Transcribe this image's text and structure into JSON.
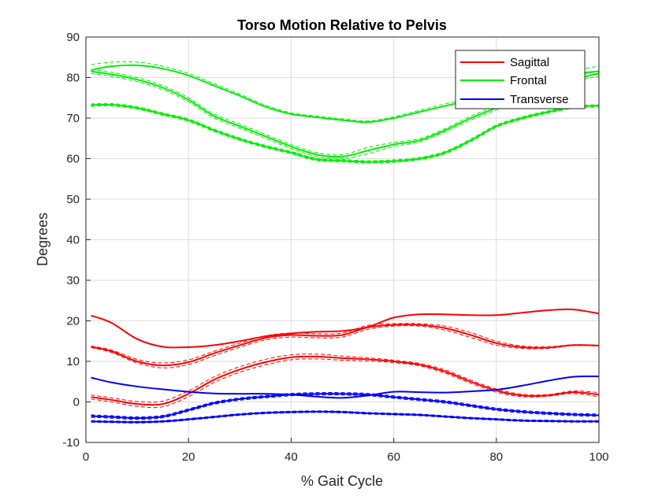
{
  "chart_data": {
    "type": "line",
    "title": "Torso Motion Relative to Pelvis",
    "xlabel": "% Gait Cycle",
    "ylabel": "Degrees",
    "xlim": [
      0,
      100
    ],
    "ylim": [
      -10,
      90
    ],
    "xticks": [
      0,
      20,
      40,
      60,
      80,
      100
    ],
    "yticks": [
      -10,
      0,
      10,
      20,
      30,
      40,
      50,
      60,
      70,
      80,
      90
    ],
    "grid": true,
    "legend_position": "top-right",
    "colors": {
      "Sagittal": "#ff0000",
      "Frontal": "#00ee00",
      "Transverse": "#0000ff",
      "grid": "#dedede",
      "axis": "#262626"
    },
    "series": [
      {
        "name": "Sagittal",
        "group": "Sagittal",
        "style": "solid",
        "x": [
          1,
          5,
          10,
          15,
          20,
          25,
          30,
          35,
          40,
          45,
          50,
          55,
          60,
          65,
          70,
          75,
          80,
          85,
          90,
          95,
          100
        ],
        "y": [
          21.3,
          19.5,
          15.5,
          13.6,
          13.5,
          14.0,
          15.0,
          16.2,
          16.9,
          17.3,
          17.5,
          18.5,
          20.8,
          21.6,
          21.6,
          21.4,
          21.4,
          22.0,
          22.6,
          22.8,
          21.8
        ]
      },
      {
        "name": "Sagittal mean 2",
        "group": "Sagittal",
        "style": "solid",
        "x": [
          1,
          5,
          10,
          15,
          20,
          25,
          30,
          35,
          40,
          45,
          50,
          55,
          60,
          65,
          70,
          75,
          80,
          85,
          90,
          95,
          100
        ],
        "y": [
          13.6,
          12.5,
          10.0,
          9.0,
          9.8,
          12.0,
          14.0,
          15.8,
          16.5,
          16.3,
          16.5,
          18.4,
          19.0,
          19.0,
          18.2,
          16.5,
          14.5,
          13.5,
          13.4,
          14.0,
          13.9
        ]
      },
      {
        "name": "Sagittal upper 2",
        "group": "Sagittal",
        "style": "dashed",
        "x": [
          1,
          5,
          10,
          15,
          20,
          25,
          30,
          35,
          40,
          45,
          50,
          55,
          60,
          65,
          70,
          75,
          80,
          85,
          90,
          95,
          100
        ],
        "y": [
          13.8,
          12.8,
          10.5,
          9.6,
          10.4,
          12.5,
          14.5,
          16.3,
          17.0,
          16.8,
          17.0,
          18.9,
          19.3,
          19.3,
          18.7,
          17.1,
          15.0,
          13.8,
          13.6,
          14.1,
          14.0
        ]
      },
      {
        "name": "Sagittal lower 2",
        "group": "Sagittal",
        "style": "dashed",
        "x": [
          1,
          5,
          10,
          15,
          20,
          25,
          30,
          35,
          40,
          45,
          50,
          55,
          60,
          65,
          70,
          75,
          80,
          85,
          90,
          95,
          100
        ],
        "y": [
          13.4,
          12.2,
          9.6,
          8.4,
          9.2,
          11.4,
          13.5,
          15.3,
          16.0,
          15.8,
          16.0,
          17.9,
          18.7,
          18.7,
          17.7,
          15.9,
          14.0,
          13.2,
          13.2,
          13.9,
          13.8
        ]
      },
      {
        "name": "Sagittal mean 3",
        "group": "Sagittal",
        "style": "solid",
        "x": [
          1,
          5,
          10,
          15,
          20,
          25,
          30,
          35,
          40,
          45,
          50,
          55,
          60,
          65,
          70,
          75,
          80,
          85,
          90,
          95,
          100
        ],
        "y": [
          1.2,
          0.5,
          -0.5,
          -0.5,
          2.0,
          5.5,
          8.0,
          9.8,
          11.0,
          11.2,
          10.8,
          10.5,
          10.0,
          9.2,
          7.5,
          5.0,
          2.8,
          1.6,
          1.6,
          2.4,
          1.8
        ]
      },
      {
        "name": "Sagittal upper 3",
        "group": "Sagittal",
        "style": "dashed",
        "x": [
          1,
          5,
          10,
          15,
          20,
          25,
          30,
          35,
          40,
          45,
          50,
          55,
          60,
          65,
          70,
          75,
          80,
          85,
          90,
          95,
          100
        ],
        "y": [
          1.7,
          1.0,
          0.1,
          0.2,
          2.7,
          6.2,
          8.7,
          10.5,
          11.6,
          11.8,
          11.3,
          10.9,
          10.3,
          9.5,
          7.9,
          5.4,
          3.2,
          1.9,
          1.8,
          2.7,
          2.3
        ]
      },
      {
        "name": "Sagittal lower 3",
        "group": "Sagittal",
        "style": "dashed",
        "x": [
          1,
          5,
          10,
          15,
          20,
          25,
          30,
          35,
          40,
          45,
          50,
          55,
          60,
          65,
          70,
          75,
          80,
          85,
          90,
          95,
          100
        ],
        "y": [
          0.7,
          0.0,
          -1.1,
          -1.2,
          1.3,
          4.8,
          7.3,
          9.1,
          10.4,
          10.6,
          10.3,
          10.1,
          9.7,
          8.9,
          7.1,
          4.6,
          2.4,
          1.3,
          1.4,
          2.1,
          1.3
        ]
      },
      {
        "name": "Frontal",
        "group": "Frontal",
        "style": "solid",
        "x": [
          1,
          5,
          10,
          15,
          20,
          25,
          30,
          35,
          40,
          45,
          50,
          55,
          60,
          65,
          70,
          75,
          80,
          85,
          90,
          95,
          100
        ],
        "y": [
          81.8,
          82.8,
          83.0,
          82.2,
          80.5,
          78.0,
          75.5,
          72.8,
          71.0,
          70.2,
          69.5,
          69.0,
          70.0,
          71.5,
          73.0,
          74.5,
          76.5,
          78.5,
          80.0,
          81.0,
          81.5
        ]
      },
      {
        "name": "Frontal upper 1",
        "group": "Frontal",
        "style": "dashed",
        "x": [
          1,
          5,
          10,
          15,
          20,
          25,
          30,
          35,
          40,
          45,
          50,
          55,
          60,
          65,
          70,
          75,
          80,
          85,
          90,
          95,
          100
        ],
        "y": [
          83.2,
          83.8,
          83.8,
          82.8,
          81.0,
          78.5,
          75.9,
          73.2,
          71.3,
          70.5,
          69.8,
          69.3,
          70.3,
          71.9,
          73.5,
          75.0,
          77.0,
          79.2,
          80.8,
          81.8,
          82.8
        ]
      },
      {
        "name": "Frontal mean 2",
        "group": "Frontal",
        "style": "solid",
        "x": [
          1,
          5,
          10,
          15,
          20,
          25,
          30,
          35,
          40,
          45,
          50,
          55,
          60,
          65,
          70,
          75,
          80,
          85,
          90,
          95,
          100
        ],
        "y": [
          81.5,
          80.8,
          79.5,
          77.5,
          74.5,
          70.5,
          68.0,
          65.5,
          63.0,
          61.0,
          60.5,
          62.0,
          63.5,
          64.5,
          67.0,
          70.0,
          72.5,
          74.8,
          77.0,
          79.5,
          81.0
        ]
      },
      {
        "name": "Frontal upper 2",
        "group": "Frontal",
        "style": "dashed",
        "x": [
          1,
          5,
          10,
          15,
          20,
          25,
          30,
          35,
          40,
          45,
          50,
          55,
          60,
          65,
          70,
          75,
          80,
          85,
          90,
          95,
          100
        ],
        "y": [
          82.0,
          81.3,
          80.0,
          78.0,
          75.0,
          71.0,
          68.5,
          66.0,
          63.5,
          61.5,
          61.0,
          62.8,
          64.0,
          64.9,
          67.4,
          70.5,
          73.0,
          75.3,
          77.5,
          80.0,
          81.7
        ]
      },
      {
        "name": "Frontal lower 2",
        "group": "Frontal",
        "style": "dashed",
        "x": [
          1,
          5,
          10,
          15,
          20,
          25,
          30,
          35,
          40,
          45,
          50,
          55,
          60,
          65,
          70,
          75,
          80,
          85,
          90,
          95,
          100
        ],
        "y": [
          81.0,
          80.3,
          79.0,
          77.0,
          74.0,
          70.0,
          67.5,
          65.0,
          62.5,
          60.5,
          60.0,
          61.2,
          63.0,
          64.1,
          66.6,
          69.5,
          72.0,
          74.3,
          76.5,
          79.0,
          80.3
        ]
      },
      {
        "name": "Frontal mean 3",
        "group": "Frontal",
        "style": "solid",
        "x": [
          1,
          5,
          10,
          15,
          20,
          25,
          30,
          35,
          40,
          45,
          50,
          55,
          60,
          65,
          70,
          75,
          80,
          85,
          90,
          95,
          100
        ],
        "y": [
          73.2,
          73.3,
          72.5,
          71.0,
          69.5,
          67.0,
          64.8,
          63.0,
          61.5,
          59.8,
          59.5,
          59.2,
          59.4,
          60.0,
          61.5,
          64.5,
          68.0,
          70.0,
          71.5,
          72.7,
          73.1
        ]
      },
      {
        "name": "Frontal upper 3",
        "group": "Frontal",
        "style": "dashed",
        "x": [
          1,
          5,
          10,
          15,
          20,
          25,
          30,
          35,
          40,
          45,
          50,
          55,
          60,
          65,
          70,
          75,
          80,
          85,
          90,
          95,
          100
        ],
        "y": [
          73.5,
          73.6,
          72.8,
          71.3,
          69.8,
          67.3,
          65.1,
          63.3,
          61.8,
          60.1,
          59.8,
          59.5,
          59.7,
          60.3,
          61.8,
          64.8,
          68.3,
          70.3,
          71.8,
          73.0,
          73.3
        ]
      },
      {
        "name": "Frontal lower 3",
        "group": "Frontal",
        "style": "dashed",
        "x": [
          1,
          5,
          10,
          15,
          20,
          25,
          30,
          35,
          40,
          45,
          50,
          55,
          60,
          65,
          70,
          75,
          80,
          85,
          90,
          95,
          100
        ],
        "y": [
          72.9,
          73.0,
          72.2,
          70.7,
          69.2,
          66.7,
          64.5,
          62.7,
          61.2,
          59.5,
          59.2,
          58.9,
          59.1,
          59.7,
          61.2,
          64.2,
          67.7,
          69.7,
          71.2,
          72.4,
          72.8
        ]
      },
      {
        "name": "Transverse",
        "group": "Transverse",
        "style": "solid",
        "x": [
          1,
          5,
          10,
          15,
          20,
          25,
          30,
          35,
          40,
          45,
          50,
          55,
          60,
          65,
          70,
          75,
          80,
          85,
          90,
          95,
          100
        ],
        "y": [
          6.0,
          4.8,
          3.8,
          3.1,
          2.5,
          2.1,
          2.0,
          2.0,
          1.8,
          1.3,
          1.0,
          1.6,
          2.5,
          2.4,
          2.3,
          2.6,
          3.0,
          4.0,
          5.2,
          6.2,
          6.3
        ]
      },
      {
        "name": "Transverse mean 2",
        "group": "Transverse",
        "style": "solid",
        "x": [
          1,
          5,
          10,
          15,
          20,
          25,
          30,
          35,
          40,
          45,
          50,
          55,
          60,
          65,
          70,
          75,
          80,
          85,
          90,
          95,
          100
        ],
        "y": [
          -3.5,
          -3.7,
          -4.0,
          -3.6,
          -2.0,
          -0.3,
          0.7,
          1.3,
          1.8,
          2.0,
          2.0,
          1.8,
          1.2,
          0.6,
          0.0,
          -0.9,
          -1.8,
          -2.4,
          -2.8,
          -3.1,
          -3.3
        ]
      },
      {
        "name": "Transverse upper 2",
        "group": "Transverse",
        "style": "dashed",
        "x": [
          1,
          5,
          10,
          15,
          20,
          25,
          30,
          35,
          40,
          45,
          50,
          55,
          60,
          65,
          70,
          75,
          80,
          85,
          90,
          95,
          100
        ],
        "y": [
          -3.2,
          -3.4,
          -3.7,
          -3.3,
          -1.7,
          0.0,
          1.0,
          1.6,
          2.1,
          2.3,
          2.3,
          2.1,
          1.5,
          0.9,
          0.3,
          -0.6,
          -1.5,
          -2.1,
          -2.5,
          -2.8,
          -3.0
        ]
      },
      {
        "name": "Transverse lower 2",
        "group": "Transverse",
        "style": "dashed",
        "x": [
          1,
          5,
          10,
          15,
          20,
          25,
          30,
          35,
          40,
          45,
          50,
          55,
          60,
          65,
          70,
          75,
          80,
          85,
          90,
          95,
          100
        ],
        "y": [
          -3.8,
          -4.0,
          -4.3,
          -3.9,
          -2.3,
          -0.6,
          0.4,
          1.0,
          1.5,
          1.7,
          1.7,
          1.5,
          0.9,
          0.3,
          -0.3,
          -1.2,
          -2.1,
          -2.7,
          -3.1,
          -3.4,
          -3.6
        ]
      },
      {
        "name": "Transverse mean 3",
        "group": "Transverse",
        "style": "solid",
        "x": [
          1,
          5,
          10,
          15,
          20,
          25,
          30,
          35,
          40,
          45,
          50,
          55,
          60,
          65,
          70,
          75,
          80,
          85,
          90,
          95,
          100
        ],
        "y": [
          -4.8,
          -4.9,
          -5.0,
          -4.8,
          -4.3,
          -3.7,
          -3.1,
          -2.7,
          -2.5,
          -2.4,
          -2.5,
          -2.8,
          -3.0,
          -3.2,
          -3.6,
          -4.0,
          -4.3,
          -4.6,
          -4.7,
          -4.8,
          -4.8
        ]
      },
      {
        "name": "Transverse upper 3",
        "group": "Transverse",
        "style": "dashed",
        "x": [
          1,
          5,
          10,
          15,
          20,
          25,
          30,
          35,
          40,
          45,
          50,
          55,
          60,
          65,
          70,
          75,
          80,
          85,
          90,
          95,
          100
        ],
        "y": [
          -4.6,
          -4.7,
          -4.8,
          -4.6,
          -4.1,
          -3.5,
          -2.9,
          -2.5,
          -2.3,
          -2.2,
          -2.3,
          -2.6,
          -2.8,
          -3.0,
          -3.4,
          -3.8,
          -4.1,
          -4.4,
          -4.5,
          -4.6,
          -4.6
        ]
      },
      {
        "name": "Transverse lower 3",
        "group": "Transverse",
        "style": "dashed",
        "x": [
          1,
          5,
          10,
          15,
          20,
          25,
          30,
          35,
          40,
          45,
          50,
          55,
          60,
          65,
          70,
          75,
          80,
          85,
          90,
          95,
          100
        ],
        "y": [
          -5.0,
          -5.1,
          -5.2,
          -5.0,
          -4.5,
          -3.9,
          -3.3,
          -2.9,
          -2.7,
          -2.6,
          -2.7,
          -3.0,
          -3.2,
          -3.4,
          -3.8,
          -4.2,
          -4.5,
          -4.8,
          -4.9,
          -5.0,
          -5.0
        ]
      }
    ],
    "legend": [
      "Sagittal",
      "Frontal",
      "Transverse"
    ]
  }
}
